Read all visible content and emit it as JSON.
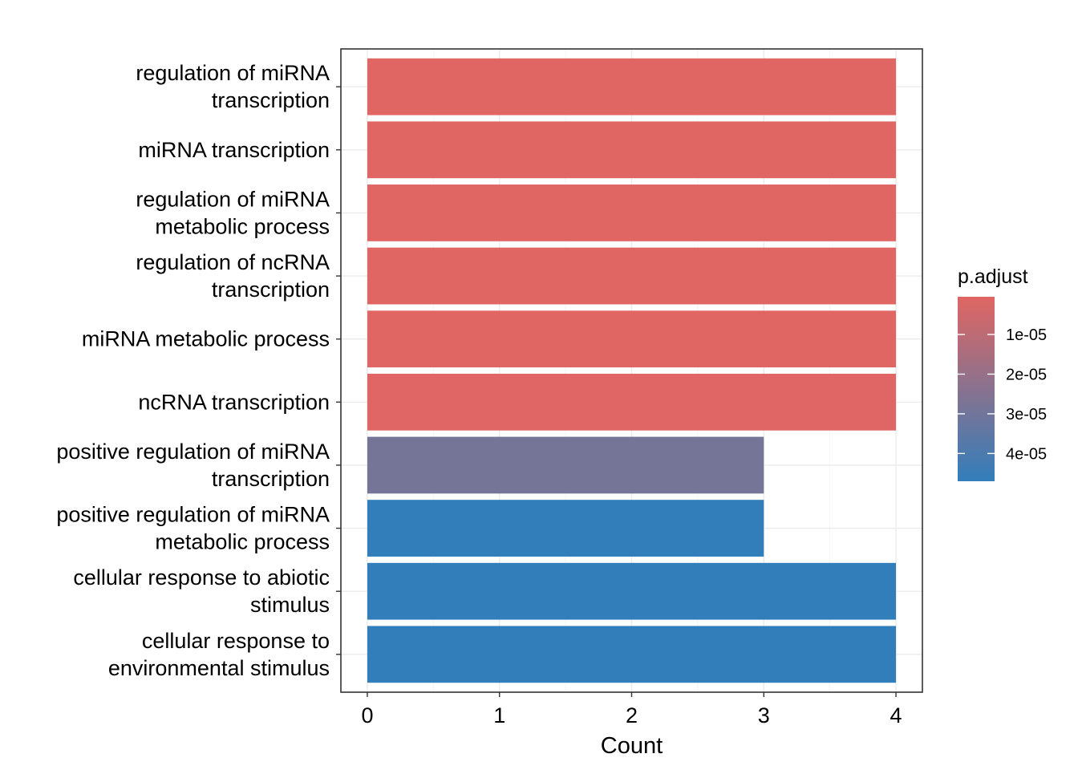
{
  "chart_data": {
    "type": "bar",
    "orientation": "horizontal",
    "categories": [
      [
        "regulation of miRNA",
        "transcription"
      ],
      [
        "miRNA transcription"
      ],
      [
        "regulation of miRNA",
        "metabolic process"
      ],
      [
        "regulation of ncRNA",
        "transcription"
      ],
      [
        "miRNA metabolic process"
      ],
      [
        "ncRNA transcription"
      ],
      [
        "positive regulation of miRNA",
        "transcription"
      ],
      [
        "positive regulation of miRNA",
        "metabolic process"
      ],
      [
        "cellular response to abiotic",
        "stimulus"
      ],
      [
        "cellular response to",
        "environmental stimulus"
      ]
    ],
    "values": [
      4,
      4,
      4,
      4,
      4,
      4,
      3,
      3,
      4,
      4
    ],
    "p_adjust": [
      5e-07,
      5e-07,
      5e-07,
      5e-07,
      5e-07,
      8e-07,
      2.9e-05,
      4.7e-05,
      4.7e-05,
      4.7e-05
    ],
    "xlabel": "Count",
    "ylabel": "",
    "xlim": [
      -0.2,
      4.2
    ],
    "xticks": [
      "0",
      "1",
      "2",
      "3",
      "4"
    ],
    "grid": true,
    "legend": {
      "title": "p.adjust",
      "position": "right",
      "type": "colorbar",
      "range": [
        5e-07,
        4.7e-05
      ],
      "ticks": [
        {
          "value": 1e-05,
          "label": "1e-05"
        },
        {
          "value": 2e-05,
          "label": "2e-05"
        },
        {
          "value": 3e-05,
          "label": "3e-05"
        },
        {
          "value": 4e-05,
          "label": "4e-05"
        }
      ],
      "low_color": "#e06663",
      "high_color": "#327eba"
    }
  }
}
